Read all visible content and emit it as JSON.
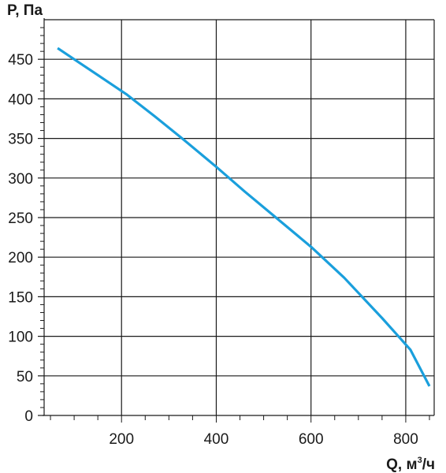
{
  "chart_data": {
    "type": "line",
    "title": "",
    "ylabel": "P, Па",
    "xlabel": {
      "prefix": "Q, м",
      "sup": "3",
      "suffix": "/ч"
    },
    "xlim": [
      10,
      860
    ],
    "ylim": [
      0,
      500
    ],
    "x_ticks": [
      200,
      400,
      600,
      800
    ],
    "x_tick_labels": [
      "200",
      "400",
      "600",
      "800"
    ],
    "y_ticks": [
      0,
      50,
      100,
      150,
      200,
      250,
      300,
      350,
      400,
      450
    ],
    "y_tick_labels": [
      "0",
      "50",
      "100",
      "150",
      "200",
      "250",
      "300",
      "350",
      "400",
      "450"
    ],
    "x_gridlines": [
      200,
      400,
      600,
      800
    ],
    "y_gridlines": [
      50,
      100,
      150,
      200,
      250,
      300,
      350,
      400,
      450,
      500
    ],
    "grid": true,
    "line_color": "#1a9fdc",
    "series": [
      {
        "x": [
          65,
          110,
          160,
          210,
          270,
          330,
          400,
          460,
          520,
          600,
          670,
          750,
          810,
          850
        ],
        "values": [
          464,
          446,
          426,
          406,
          378,
          349,
          314,
          283,
          253,
          213,
          174,
          123,
          83,
          37
        ]
      }
    ]
  }
}
